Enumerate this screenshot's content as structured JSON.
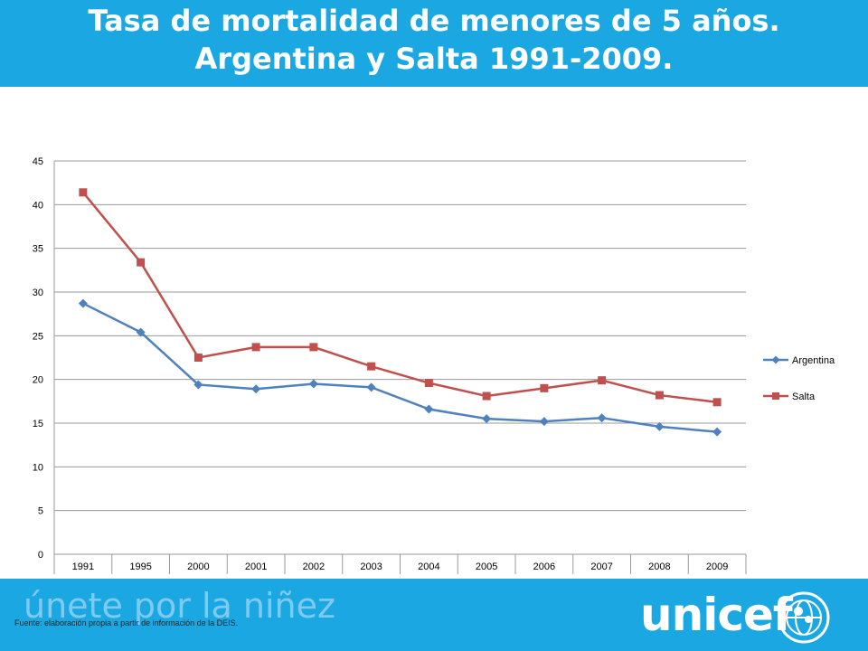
{
  "header": {
    "title_line1": "Tasa de mortalidad de menores de 5 años.",
    "title_line2": "Argentina y Salta 1991-2009."
  },
  "footer": {
    "slogan": "únete por la niñez",
    "source": "Fuente: elaboración propia a partir de información de la DEIS.",
    "brand": "unicef",
    "emblem_icon": "unicef-emblem-icon"
  },
  "colors": {
    "header_bg": "#1ba8e2",
    "argentina": "#4f81bd",
    "salta": "#c0504d",
    "grid": "#9a9a9a"
  },
  "chart_data": {
    "type": "line",
    "categories": [
      "1991",
      "1995",
      "2000",
      "2001",
      "2002",
      "2003",
      "2004",
      "2005",
      "2006",
      "2007",
      "2008",
      "2009"
    ],
    "ylim": [
      0,
      45
    ],
    "yticks": [
      0,
      5,
      10,
      15,
      20,
      25,
      30,
      35,
      40,
      45
    ],
    "grid": true,
    "legend_position": "right",
    "series": [
      {
        "name": "Argentina",
        "marker": "diamond",
        "color": "#4f81bd",
        "values": [
          28.7,
          25.4,
          19.4,
          18.9,
          19.5,
          19.1,
          16.6,
          15.5,
          15.2,
          15.6,
          14.6,
          14.0
        ]
      },
      {
        "name": "Salta",
        "marker": "square",
        "color": "#c0504d",
        "values": [
          41.4,
          33.4,
          22.5,
          23.7,
          23.7,
          21.5,
          19.6,
          18.1,
          19.0,
          19.9,
          18.2,
          17.4
        ]
      }
    ]
  }
}
